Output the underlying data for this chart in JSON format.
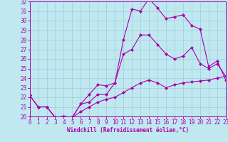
{
  "xlabel": "Windchill (Refroidissement éolien,°C)",
  "xlim": [
    0,
    23
  ],
  "ylim": [
    20,
    32
  ],
  "yticks": [
    20,
    21,
    22,
    23,
    24,
    25,
    26,
    27,
    28,
    29,
    30,
    31,
    32
  ],
  "xticks": [
    0,
    1,
    2,
    3,
    4,
    5,
    6,
    7,
    8,
    9,
    10,
    11,
    12,
    13,
    14,
    15,
    16,
    17,
    18,
    19,
    20,
    21,
    22,
    23
  ],
  "background_color": "#c0e8f0",
  "grid_color": "#a0ccd8",
  "line_color": "#aa00aa",
  "line1_x": [
    0,
    1,
    2,
    3,
    4,
    5,
    6,
    7,
    8,
    9,
    10,
    11,
    12,
    13,
    14,
    15,
    16,
    17,
    18,
    19,
    20,
    21,
    22,
    23
  ],
  "line1_y": [
    22.2,
    21.0,
    21.0,
    19.9,
    20.0,
    19.9,
    21.3,
    22.3,
    23.3,
    23.2,
    23.5,
    28.0,
    31.2,
    31.0,
    32.3,
    31.3,
    30.2,
    30.4,
    30.6,
    29.5,
    29.1,
    25.2,
    25.8,
    23.8
  ],
  "line2_x": [
    0,
    1,
    2,
    3,
    4,
    5,
    6,
    7,
    8,
    9,
    10,
    11,
    12,
    13,
    14,
    15,
    16,
    17,
    18,
    19,
    20,
    21,
    22,
    23
  ],
  "line2_y": [
    22.2,
    21.0,
    21.0,
    19.9,
    20.0,
    19.9,
    21.3,
    21.5,
    22.3,
    22.3,
    23.5,
    26.5,
    27.0,
    28.5,
    28.5,
    27.5,
    26.5,
    26.0,
    26.3,
    27.2,
    25.5,
    25.0,
    25.5,
    24.2
  ],
  "line3_x": [
    0,
    1,
    2,
    3,
    4,
    5,
    6,
    7,
    8,
    9,
    10,
    11,
    12,
    13,
    14,
    15,
    16,
    17,
    18,
    19,
    20,
    21,
    22,
    23
  ],
  "line3_y": [
    22.2,
    21.0,
    21.0,
    19.9,
    20.0,
    19.9,
    20.5,
    21.0,
    21.5,
    21.8,
    22.0,
    22.5,
    23.0,
    23.5,
    23.8,
    23.5,
    23.0,
    23.3,
    23.5,
    23.6,
    23.7,
    23.8,
    24.0,
    24.2
  ],
  "marker": "D",
  "markersize": 2.0,
  "linewidth": 0.8,
  "tick_fontsize": 5.5,
  "xlabel_fontsize": 5.5
}
